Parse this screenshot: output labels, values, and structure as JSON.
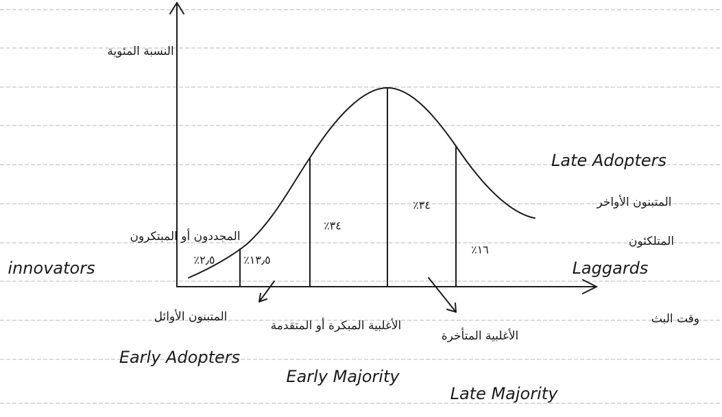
{
  "axes": {
    "y_label": "النسبة المئوية",
    "x_label": "وقت البث"
  },
  "segments": [
    {
      "percent": "٪٢٫٥"
    },
    {
      "percent": "٪١٣٫٥"
    },
    {
      "percent": "٪٣٤"
    },
    {
      "percent": "٪٣٤"
    },
    {
      "percent": "٪١٦"
    }
  ],
  "groups": [
    {
      "arabic": "المجددون أو المبتكرون",
      "english": "innovators"
    },
    {
      "arabic": "المتبنون الأوائل",
      "english": "Early Adopters"
    },
    {
      "arabic": "الأغلبية المبكرة أو المتقدمة",
      "english": "Early Majority"
    },
    {
      "arabic": "الأغلبية المتأخرة",
      "english": "Late Majority"
    },
    {
      "arabic": "المتبنون الأواخر",
      "english": "Late Adopters"
    },
    {
      "arabic": "المتلكئون",
      "english": "Laggards"
    }
  ]
}
